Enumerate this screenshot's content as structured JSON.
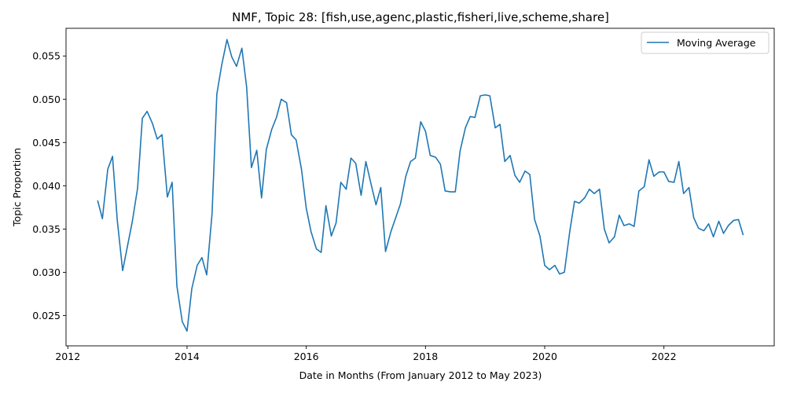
{
  "chart_data": {
    "type": "line",
    "title": "NMF, Topic 28: [fish,use,agenc,plastic,fisheri,live,scheme,share]",
    "xlabel": "Date in Months (From January 2012 to May 2023)",
    "ylabel": "Topic Proportion",
    "xlim": [
      2011.97,
      2023.85
    ],
    "ylim": [
      0.0215,
      0.0582
    ],
    "x_ticks": [
      "2012",
      "2014",
      "2016",
      "2018",
      "2020",
      "2022"
    ],
    "y_ticks": [
      "0.025",
      "0.030",
      "0.035",
      "0.040",
      "0.045",
      "0.050",
      "0.055"
    ],
    "grid": false,
    "legend_position": "top-right",
    "series": [
      {
        "name": "Moving Average",
        "color": "#1f77b4",
        "x": [
          2012.5,
          2012.58,
          2012.67,
          2012.75,
          2012.83,
          2012.92,
          2013.0,
          2013.08,
          2013.17,
          2013.25,
          2013.33,
          2013.42,
          2013.5,
          2013.58,
          2013.67,
          2013.75,
          2013.83,
          2013.92,
          2014.0,
          2014.08,
          2014.17,
          2014.25,
          2014.33,
          2014.42,
          2014.5,
          2014.58,
          2014.67,
          2014.75,
          2014.83,
          2014.92,
          2015.0,
          2015.08,
          2015.17,
          2015.25,
          2015.33,
          2015.42,
          2015.5,
          2015.58,
          2015.67,
          2015.75,
          2015.83,
          2015.92,
          2016.0,
          2016.08,
          2016.17,
          2016.25,
          2016.33,
          2016.42,
          2016.5,
          2016.58,
          2016.67,
          2016.75,
          2016.83,
          2016.92,
          2017.0,
          2017.08,
          2017.17,
          2017.25,
          2017.33,
          2017.42,
          2017.5,
          2017.58,
          2017.67,
          2017.75,
          2017.83,
          2017.92,
          2018.0,
          2018.08,
          2018.17,
          2018.25,
          2018.33,
          2018.42,
          2018.5,
          2018.58,
          2018.67,
          2018.75,
          2018.83,
          2018.92,
          2019.0,
          2019.08,
          2019.17,
          2019.25,
          2019.33,
          2019.42,
          2019.5,
          2019.58,
          2019.67,
          2019.75,
          2019.83,
          2019.92,
          2020.0,
          2020.08,
          2020.17,
          2020.25,
          2020.33,
          2020.42,
          2020.5,
          2020.58,
          2020.67,
          2020.75,
          2020.83,
          2020.92,
          2021.0,
          2021.08,
          2021.17,
          2021.25,
          2021.33,
          2021.42,
          2021.5,
          2021.58,
          2021.67,
          2021.75,
          2021.83,
          2021.92,
          2022.0,
          2022.08,
          2022.17,
          2022.25,
          2022.33,
          2022.42,
          2022.5,
          2022.58,
          2022.67,
          2022.75,
          2022.83,
          2022.92,
          2023.0,
          2023.08,
          2023.17,
          2023.25,
          2023.33
        ],
        "y": [
          0.0383,
          0.0362,
          0.0419,
          0.0434,
          0.036,
          0.0302,
          0.033,
          0.0358,
          0.0397,
          0.0478,
          0.0486,
          0.0472,
          0.0454,
          0.0459,
          0.0387,
          0.0404,
          0.0284,
          0.0243,
          0.0232,
          0.0281,
          0.0308,
          0.0317,
          0.0297,
          0.0368,
          0.0506,
          0.0539,
          0.0569,
          0.0549,
          0.0538,
          0.0559,
          0.0514,
          0.0421,
          0.0441,
          0.0386,
          0.0442,
          0.0465,
          0.0479,
          0.05,
          0.0496,
          0.0459,
          0.0453,
          0.0419,
          0.0374,
          0.0347,
          0.0327,
          0.0323,
          0.0377,
          0.0342,
          0.0357,
          0.0404,
          0.0396,
          0.0432,
          0.0426,
          0.0389,
          0.0428,
          0.0404,
          0.0378,
          0.0398,
          0.0324,
          0.0347,
          0.0363,
          0.0379,
          0.0411,
          0.0428,
          0.0432,
          0.0474,
          0.0463,
          0.0435,
          0.0433,
          0.0425,
          0.0394,
          0.0393,
          0.0393,
          0.044,
          0.0467,
          0.048,
          0.0479,
          0.0504,
          0.0505,
          0.0504,
          0.0467,
          0.0471,
          0.0428,
          0.0435,
          0.0412,
          0.0404,
          0.0417,
          0.0413,
          0.0361,
          0.0342,
          0.0308,
          0.0303,
          0.0308,
          0.0298,
          0.03,
          0.0347,
          0.0382,
          0.038,
          0.0386,
          0.0396,
          0.0391,
          0.0396,
          0.035,
          0.0334,
          0.0341,
          0.0366,
          0.0354,
          0.0356,
          0.0353,
          0.0394,
          0.0399,
          0.043,
          0.0411,
          0.0416,
          0.0416,
          0.0405,
          0.0404,
          0.0428,
          0.0391,
          0.0398,
          0.0363,
          0.0351,
          0.0348,
          0.0356,
          0.0341,
          0.0359,
          0.0345,
          0.0354,
          0.036,
          0.0361,
          0.0343
        ]
      }
    ]
  }
}
